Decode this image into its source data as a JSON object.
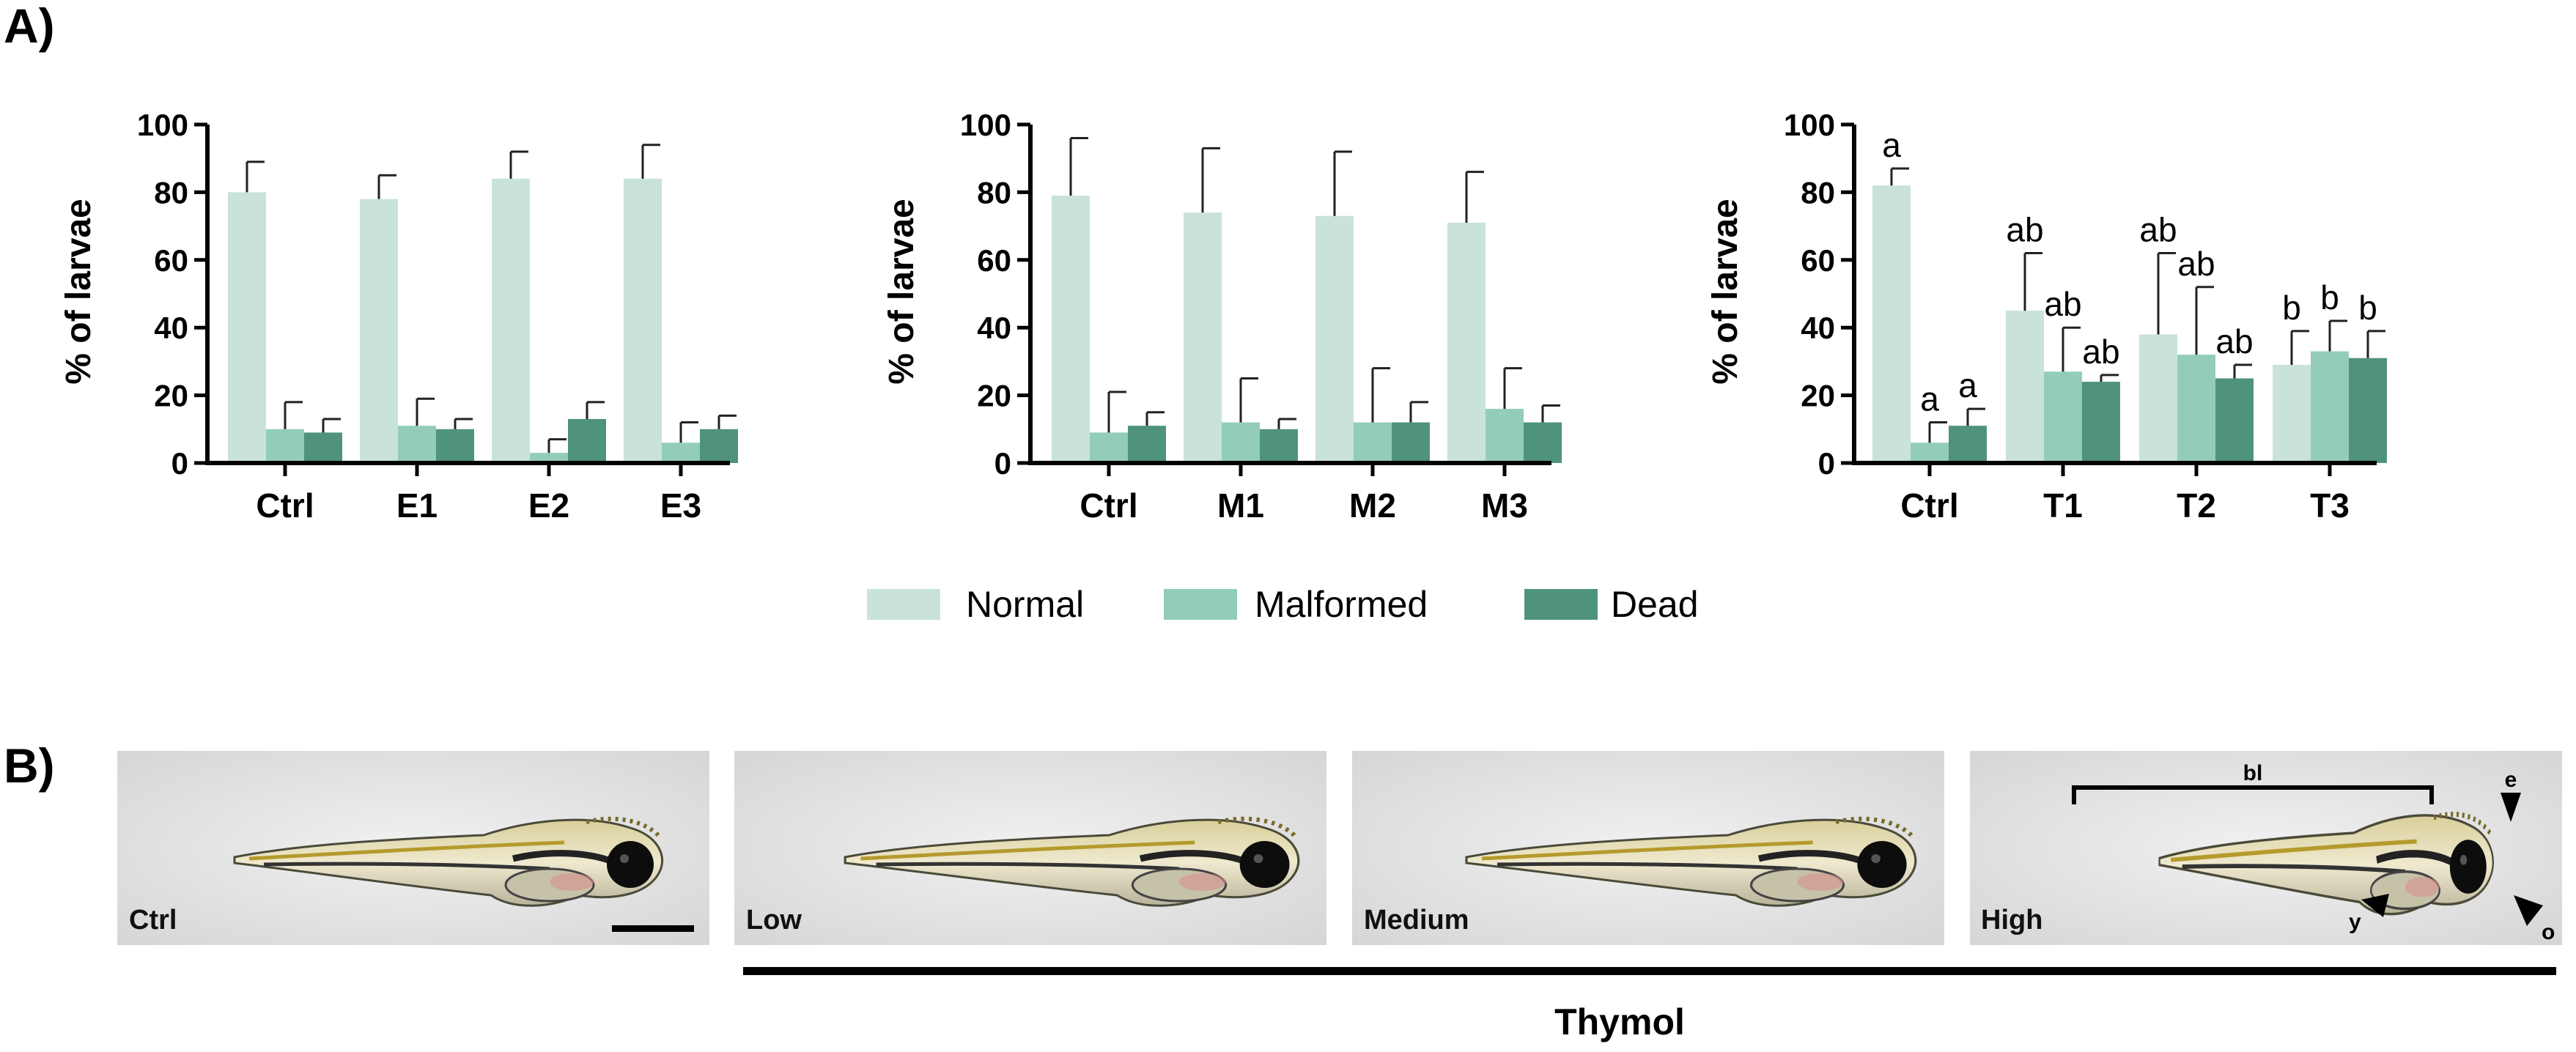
{
  "panel_a_label": "A)",
  "panel_b_label": "B)",
  "colors": {
    "normal": "#c9e2dc",
    "malformed": "#93cdb9",
    "dead": "#4f937c",
    "error": "#222222"
  },
  "chart_data": [
    {
      "type": "bar",
      "ylabel": "% of larvae",
      "ylim": [
        0,
        100
      ],
      "yticks": [
        "0",
        "20",
        "40",
        "60",
        "80",
        "100"
      ],
      "categories": [
        "Ctrl",
        "E1",
        "E2",
        "E3"
      ],
      "series": [
        {
          "name": "Normal",
          "values": [
            80,
            78,
            84,
            84
          ],
          "errors": [
            9,
            7,
            8,
            10
          ]
        },
        {
          "name": "Malformed",
          "values": [
            10,
            11,
            3,
            6
          ],
          "errors": [
            8,
            8,
            4,
            6
          ]
        },
        {
          "name": "Dead",
          "values": [
            9,
            10,
            13,
            10
          ],
          "errors": [
            4,
            3,
            5,
            4
          ]
        }
      ]
    },
    {
      "type": "bar",
      "ylabel": "% of larvae",
      "ylim": [
        0,
        100
      ],
      "yticks": [
        "0",
        "20",
        "40",
        "60",
        "80",
        "100"
      ],
      "categories": [
        "Ctrl",
        "M1",
        "M2",
        "M3"
      ],
      "series": [
        {
          "name": "Normal",
          "values": [
            79,
            74,
            73,
            71
          ],
          "errors": [
            17,
            19,
            19,
            15
          ]
        },
        {
          "name": "Malformed",
          "values": [
            9,
            12,
            12,
            16
          ],
          "errors": [
            12,
            13,
            16,
            12
          ]
        },
        {
          "name": "Dead",
          "values": [
            11,
            10,
            12,
            12
          ],
          "errors": [
            4,
            3,
            6,
            5
          ]
        }
      ]
    },
    {
      "type": "bar",
      "ylabel": "% of larvae",
      "ylim": [
        0,
        100
      ],
      "yticks": [
        "0",
        "20",
        "40",
        "60",
        "80",
        "100"
      ],
      "categories": [
        "Ctrl",
        "T1",
        "T2",
        "T3"
      ],
      "series": [
        {
          "name": "Normal",
          "values": [
            82,
            45,
            38,
            29
          ],
          "errors": [
            5,
            17,
            24,
            10
          ]
        },
        {
          "name": "Malformed",
          "values": [
            6,
            27,
            32,
            33
          ],
          "errors": [
            6,
            13,
            20,
            9
          ]
        },
        {
          "name": "Dead",
          "values": [
            11,
            24,
            25,
            31
          ],
          "errors": [
            5,
            2,
            4,
            8
          ]
        }
      ],
      "annotations": [
        [
          "a",
          "a",
          "a"
        ],
        [
          "ab",
          "ab",
          "ab"
        ],
        [
          "ab",
          "ab",
          "ab"
        ],
        [
          "b",
          "b",
          "b"
        ]
      ]
    }
  ],
  "legend": [
    "Normal",
    "Malformed",
    "Dead"
  ],
  "photos": [
    {
      "label": "Ctrl"
    },
    {
      "label": "Low"
    },
    {
      "label": "Medium"
    },
    {
      "label": "High",
      "annotations": {
        "body_length": "bl",
        "eye": "e",
        "yolk": "y",
        "other": "o"
      }
    }
  ],
  "group_label": "Thymol"
}
